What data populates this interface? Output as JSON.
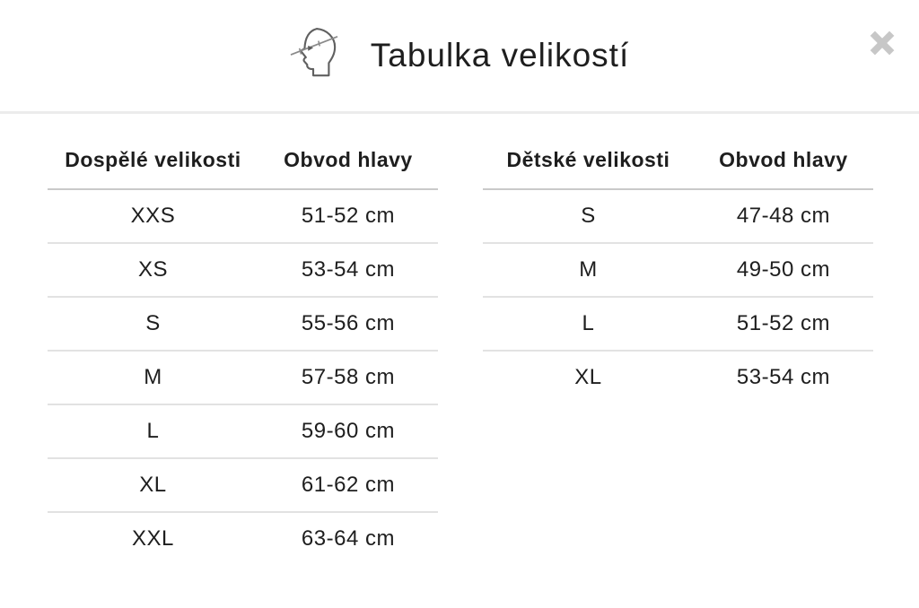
{
  "modal": {
    "title": "Tabulka velikostí",
    "icons": {
      "header_icon": "head-circumference-measure",
      "close_icon": "x-close"
    }
  },
  "tables": {
    "adult": {
      "headers": {
        "sizes": "Dospělé velikosti",
        "circumference": "Obvod hlavy"
      },
      "rows": [
        {
          "size": "XXS",
          "circumference": "51-52 cm"
        },
        {
          "size": "XS",
          "circumference": "53-54 cm"
        },
        {
          "size": "S",
          "circumference": "55-56 cm"
        },
        {
          "size": "M",
          "circumference": "57-58 cm"
        },
        {
          "size": "L",
          "circumference": "59-60 cm"
        },
        {
          "size": "XL",
          "circumference": "61-62 cm"
        },
        {
          "size": "XXL",
          "circumference": "63-64 cm"
        }
      ]
    },
    "children": {
      "headers": {
        "sizes": "Dětské velikosti",
        "circumference": "Obvod hlavy"
      },
      "rows": [
        {
          "size": "S",
          "circumference": "47-48 cm"
        },
        {
          "size": "M",
          "circumference": "49-50 cm"
        },
        {
          "size": "L",
          "circumference": "51-52 cm"
        },
        {
          "size": "XL",
          "circumference": "53-54 cm"
        }
      ]
    }
  },
  "colors": {
    "text": "#1e1e1e",
    "header_divider": "#ececec",
    "table_header_line": "#c9c9c9",
    "row_line": "#e2e2e2",
    "close_icon": "#c7c7c7",
    "icon_stroke": "#606060"
  }
}
